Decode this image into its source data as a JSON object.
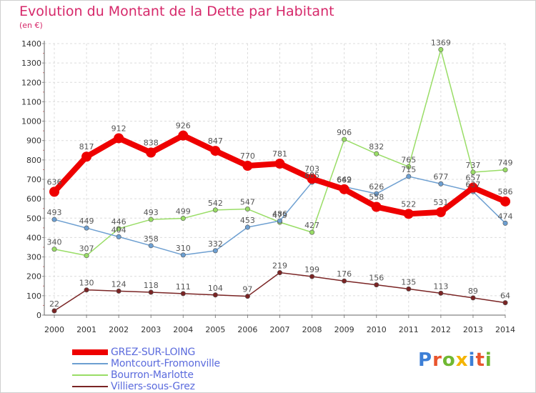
{
  "chart_data": {
    "type": "line",
    "title": "Evolution du Montant de la Dette par Habitant",
    "subtitle": "(en €)",
    "xlabel": "",
    "ylabel": "",
    "ylim": [
      0,
      1400
    ],
    "yticks": [
      0,
      100,
      200,
      300,
      400,
      500,
      600,
      700,
      800,
      900,
      1000,
      1100,
      1200,
      1300,
      1400
    ],
    "x": [
      "2000",
      "2001",
      "2002",
      "2003",
      "2004",
      "2005",
      "2006",
      "2007",
      "2008",
      "2009",
      "2010",
      "2011",
      "2012",
      "2013",
      "2014"
    ],
    "grid": true,
    "legend_position": "bottom-left",
    "series": [
      {
        "name": "GREZ-SUR-LOING",
        "color": "#ee0000",
        "width": 8,
        "marker": 7,
        "values": [
          636,
          817,
          912,
          838,
          926,
          847,
          770,
          781,
          703,
          649,
          558,
          522,
          531,
          657,
          586
        ]
      },
      {
        "name": "Montcourt-Fromonville",
        "color": "#6d9fd1",
        "width": 1.5,
        "marker": 3.2,
        "values": [
          493,
          449,
          404,
          358,
          310,
          332,
          453,
          486,
          685,
          662,
          626,
          715,
          677,
          637,
          474
        ]
      },
      {
        "name": "Bourron-Marlotte",
        "color": "#99dd66",
        "width": 1.5,
        "marker": 3.2,
        "values": [
          340,
          307,
          446,
          493,
          499,
          542,
          547,
          479,
          427,
          906,
          832,
          765,
          1369,
          737,
          749
        ]
      },
      {
        "name": "Villiers-sous-Grez",
        "color": "#7a2424",
        "width": 1.5,
        "marker": 3.2,
        "values": [
          22,
          130,
          124,
          118,
          111,
          104,
          97,
          219,
          199,
          176,
          156,
          135,
          113,
          89,
          64
        ]
      }
    ]
  },
  "logo": {
    "letters": [
      "P",
      "r",
      "o",
      "x",
      "i",
      "t",
      "i"
    ],
    "colors": [
      "#3d7fd6",
      "#e9552d",
      "#6fb832",
      "#f4b400",
      "#3d7fd6",
      "#e9552d",
      "#6fb832"
    ]
  }
}
